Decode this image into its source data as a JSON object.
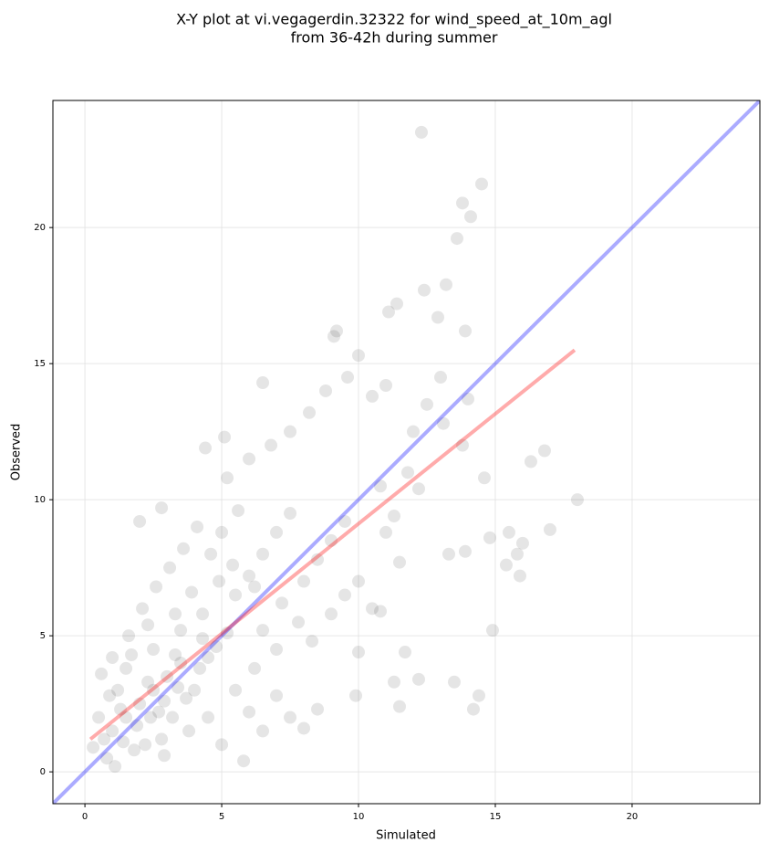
{
  "chart_data": {
    "type": "scatter",
    "title": [
      "X-Y plot at vi.vegagerdin.32322 for wind_speed_at_10m_agl",
      "from 36-42h during summer"
    ],
    "xlabel": "Simulated",
    "ylabel": "Observed",
    "xlim": [
      -1.17,
      24.67
    ],
    "ylim": [
      -1.17,
      24.67
    ],
    "xticks": [
      0,
      5,
      10,
      15,
      20
    ],
    "yticks": [
      0,
      5,
      10,
      15,
      20
    ],
    "grid": true,
    "color": "#000000",
    "x": [
      1.0,
      1.5,
      2.0,
      2.5,
      3.0,
      3.5,
      1.2,
      2.2,
      3.2,
      4.0,
      0.8,
      1.8,
      2.8,
      3.8,
      4.5,
      0.5,
      1.5,
      2.5,
      3.5,
      4.5,
      0.3,
      0.7,
      1.1,
      1.4,
      2.4,
      2.9,
      3.4,
      4.2,
      4.8,
      5.2,
      0.6,
      1.0,
      1.6,
      2.1,
      2.6,
      3.1,
      3.6,
      4.1,
      2.0,
      2.8,
      5.5,
      6.0,
      6.5,
      5.0,
      5.8,
      6.2,
      7.0,
      7.5,
      8.0,
      8.5,
      5.5,
      6.0,
      6.5,
      7.0,
      7.5,
      8.0,
      8.5,
      9.0,
      9.5,
      7.2,
      5.2,
      6.0,
      6.8,
      7.5,
      8.2,
      8.8,
      9.6,
      10.0,
      10.5,
      11.0,
      6.5,
      7.0,
      7.8,
      8.3,
      9.0,
      9.5,
      10.0,
      10.5,
      11.0,
      11.5,
      11.8,
      12.0,
      12.5,
      13.0,
      12.2,
      11.3,
      10.8,
      13.1,
      13.8,
      14.0,
      4.6,
      5.0,
      5.6,
      4.9,
      5.4,
      6.2,
      3.9,
      4.3,
      3.3,
      2.3,
      12.3,
      14.5,
      13.8,
      14.1,
      13.6,
      18.0,
      17.0,
      16.8,
      16.3,
      15.9,
      14.9,
      14.2,
      14.4,
      13.5,
      15.5,
      15.4,
      15.8,
      16.0,
      14.8,
      13.9,
      13.3,
      11.5,
      11.3,
      11.7,
      12.2,
      10.8,
      10.0,
      9.9,
      12.4,
      13.2,
      12.9,
      11.1,
      11.4,
      9.2,
      9.1,
      13.9,
      4.4,
      6.5,
      5.1,
      14.6,
      1.3,
      1.9,
      2.3,
      2.7,
      3.3,
      3.7,
      4.3,
      0.9,
      1.7,
      2.9
    ],
    "y": [
      1.5,
      2.0,
      2.5,
      3.0,
      3.5,
      4.0,
      3.0,
      1.0,
      2.0,
      3.0,
      0.5,
      0.8,
      1.2,
      1.5,
      2.0,
      2.0,
      3.8,
      4.5,
      5.2,
      4.2,
      0.9,
      1.2,
      0.2,
      1.1,
      2.0,
      2.6,
      3.1,
      3.8,
      4.6,
      5.1,
      3.6,
      4.2,
      5.0,
      6.0,
      6.8,
      7.5,
      8.2,
      9.0,
      9.2,
      9.7,
      3.0,
      2.2,
      1.5,
      1.0,
      0.4,
      3.8,
      2.8,
      2.0,
      1.6,
      2.3,
      6.5,
      7.2,
      8.0,
      8.8,
      9.5,
      7.0,
      7.8,
      8.5,
      9.2,
      6.2,
      10.8,
      11.5,
      12.0,
      12.5,
      13.2,
      14.0,
      14.5,
      15.3,
      13.8,
      14.2,
      5.2,
      4.5,
      5.5,
      4.8,
      5.8,
      6.5,
      7.0,
      6.0,
      8.8,
      7.7,
      11.0,
      12.5,
      13.5,
      14.5,
      10.4,
      9.4,
      10.5,
      12.8,
      12.0,
      13.7,
      8.0,
      8.8,
      9.6,
      7.0,
      7.6,
      6.8,
      6.6,
      5.8,
      5.8,
      5.4,
      23.5,
      21.6,
      20.9,
      20.4,
      19.6,
      10.0,
      8.9,
      11.8,
      11.4,
      7.2,
      5.2,
      2.3,
      2.8,
      3.3,
      8.8,
      7.6,
      8.0,
      8.4,
      8.6,
      8.1,
      8.0,
      2.4,
      3.3,
      4.4,
      3.4,
      5.9,
      4.4,
      2.8,
      17.7,
      17.9,
      16.7,
      16.9,
      17.2,
      16.2,
      16.0,
      16.2,
      11.9,
      14.3,
      12.3,
      10.8,
      2.3,
      1.7,
      3.3,
      2.2,
      4.3,
      2.7,
      4.9,
      2.8,
      4.3,
      0.6
    ],
    "reference_line": {
      "color": "#0000ff",
      "x": [
        -1.17,
        24.67
      ],
      "y": [
        -1.17,
        24.67
      ]
    },
    "fit_line": {
      "color": "#ff0000",
      "x": [
        0.2,
        17.9
      ],
      "y": [
        1.2,
        15.5
      ]
    }
  }
}
